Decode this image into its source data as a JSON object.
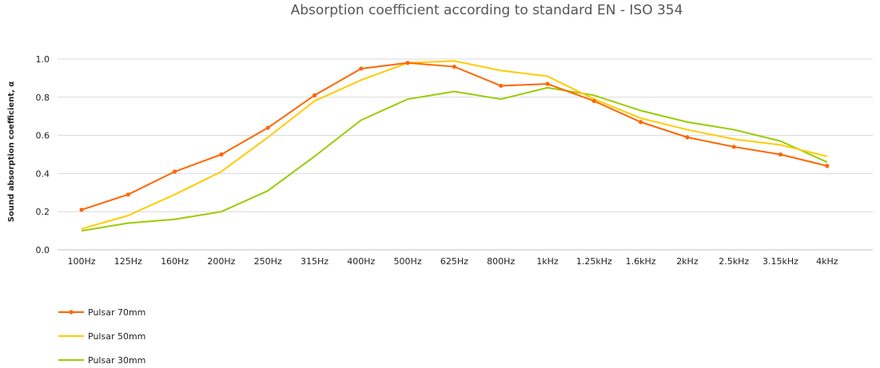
{
  "chart_data": {
    "type": "line",
    "title": "Absorption coefficient according to standard EN - ISO 354",
    "xlabel": "",
    "ylabel": "Sound absorption coefficient, α",
    "ylim": [
      0,
      1.0
    ],
    "yticks": [
      "0.0",
      "0.2",
      "0.4",
      "0.6",
      "0.8",
      "1.0"
    ],
    "grid": true,
    "legend": "bottom-left",
    "categories": [
      "100Hz",
      "125Hz",
      "160Hz",
      "200Hz",
      "250Hz",
      "315Hz",
      "400Hz",
      "500Hz",
      "625Hz",
      "800Hz",
      "1kHz",
      "1.25kHz",
      "1.6kHz",
      "2kHz",
      "2.5kHz",
      "3.15kHz",
      "4kHz"
    ],
    "series": [
      {
        "name": "Pulsar 70mm",
        "color": "#ff6600",
        "markers": true,
        "values": [
          0.21,
          0.29,
          0.41,
          0.5,
          0.64,
          0.81,
          0.95,
          0.98,
          0.96,
          0.86,
          0.87,
          0.78,
          0.67,
          0.59,
          0.54,
          0.5,
          0.44
        ]
      },
      {
        "name": "Pulsar 50mm",
        "color": "#ffcc00",
        "markers": false,
        "values": [
          0.11,
          0.18,
          0.29,
          0.41,
          0.59,
          0.78,
          0.89,
          0.98,
          0.99,
          0.94,
          0.91,
          0.79,
          0.69,
          0.63,
          0.58,
          0.55,
          0.49
        ]
      },
      {
        "name": "Pulsar 30mm",
        "color": "#99cc00",
        "markers": false,
        "values": [
          0.1,
          0.14,
          0.16,
          0.2,
          0.31,
          0.49,
          0.68,
          0.79,
          0.83,
          0.79,
          0.85,
          0.81,
          0.73,
          0.67,
          0.63,
          0.57,
          0.46
        ]
      }
    ]
  }
}
